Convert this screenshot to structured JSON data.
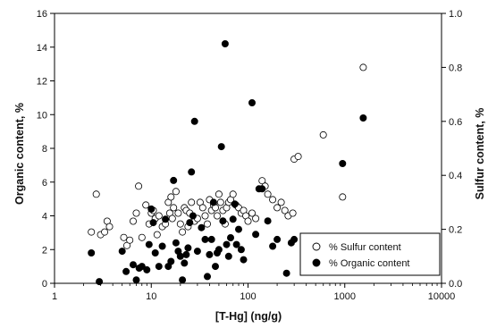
{
  "chart_data": {
    "type": "scatter",
    "xlabel": "[T-Hg] (ng/g)",
    "ylabel_left": "Organic content, %",
    "ylabel_right": "Sulfur content, %",
    "x_scale": "log",
    "xlim": [
      1,
      10000
    ],
    "ylim_left": [
      0,
      16
    ],
    "ylim_right": [
      0,
      1.0
    ],
    "x_ticks": [
      "1",
      "10",
      "100",
      "1000",
      "10000"
    ],
    "y_left_ticks": [
      "0",
      "2",
      "4",
      "6",
      "8",
      "10",
      "12",
      "14",
      "16"
    ],
    "y_right_ticks": [
      "0.0",
      "0.2",
      "0.4",
      "0.6",
      "0.8",
      "1.0"
    ],
    "grid": false,
    "legend_position": "bottom-right",
    "colors": {
      "organic_fill": "#000000",
      "sulfur_fill": "#ffffff",
      "marker_stroke": "#000000"
    },
    "series": [
      {
        "name": "% Sulfur content",
        "marker": "open-circle",
        "axis": "right",
        "points": [
          [
            2.4,
            0.19
          ],
          [
            2.7,
            0.33
          ],
          [
            3.0,
            0.18
          ],
          [
            3.3,
            0.19
          ],
          [
            3.5,
            0.23
          ],
          [
            3.7,
            0.21
          ],
          [
            5.2,
            0.17
          ],
          [
            5.6,
            0.14
          ],
          [
            6.0,
            0.16
          ],
          [
            6.5,
            0.23
          ],
          [
            7.0,
            0.26
          ],
          [
            7.4,
            0.36
          ],
          [
            8.0,
            0.17
          ],
          [
            8.8,
            0.29
          ],
          [
            9.5,
            0.22
          ],
          [
            10,
            0.26
          ],
          [
            10.5,
            0.27
          ],
          [
            11,
            0.24
          ],
          [
            11.5,
            0.18
          ],
          [
            12,
            0.25
          ],
          [
            13,
            0.21
          ],
          [
            14,
            0.22
          ],
          [
            15,
            0.3
          ],
          [
            15.5,
            0.26
          ],
          [
            16,
            0.32
          ],
          [
            16.5,
            0.24
          ],
          [
            17,
            0.28
          ],
          [
            18,
            0.34
          ],
          [
            19,
            0.26
          ],
          [
            20,
            0.22
          ],
          [
            21,
            0.19
          ],
          [
            22,
            0.28
          ],
          [
            23,
            0.27
          ],
          [
            24,
            0.21
          ],
          [
            25,
            0.26
          ],
          [
            26,
            0.3
          ],
          [
            28,
            0.23
          ],
          [
            30,
            0.24
          ],
          [
            32,
            0.3
          ],
          [
            34,
            0.28
          ],
          [
            36,
            0.25
          ],
          [
            38,
            0.22
          ],
          [
            40,
            0.31
          ],
          [
            42,
            0.27
          ],
          [
            44,
            0.29
          ],
          [
            46,
            0.28
          ],
          [
            48,
            0.25
          ],
          [
            50,
            0.33
          ],
          [
            52,
            0.3
          ],
          [
            55,
            0.27
          ],
          [
            58,
            0.22
          ],
          [
            60,
            0.28
          ],
          [
            63,
            0.3
          ],
          [
            66,
            0.31
          ],
          [
            70,
            0.33
          ],
          [
            75,
            0.29
          ],
          [
            80,
            0.28
          ],
          [
            85,
            0.26
          ],
          [
            90,
            0.27
          ],
          [
            95,
            0.25
          ],
          [
            100,
            0.23
          ],
          [
            110,
            0.26
          ],
          [
            120,
            0.24
          ],
          [
            140,
            0.38
          ],
          [
            150,
            0.36
          ],
          [
            160,
            0.33
          ],
          [
            180,
            0.31
          ],
          [
            200,
            0.28
          ],
          [
            220,
            0.3
          ],
          [
            240,
            0.27
          ],
          [
            260,
            0.25
          ],
          [
            290,
            0.26
          ],
          [
            300,
            0.46
          ],
          [
            330,
            0.47
          ],
          [
            600,
            0.55
          ],
          [
            950,
            0.32
          ],
          [
            1550,
            0.8
          ]
        ]
      },
      {
        "name": "% Organic content",
        "marker": "filled-circle",
        "axis": "left",
        "points": [
          [
            2.4,
            1.8
          ],
          [
            2.9,
            0.1
          ],
          [
            5.0,
            1.9
          ],
          [
            5.5,
            0.7
          ],
          [
            6.5,
            1.1
          ],
          [
            7.0,
            0.2
          ],
          [
            7.5,
            0.9
          ],
          [
            8.0,
            1.0
          ],
          [
            9.0,
            0.8
          ],
          [
            9.5,
            2.3
          ],
          [
            10,
            4.4
          ],
          [
            10.5,
            3.6
          ],
          [
            11,
            1.8
          ],
          [
            12,
            1.0
          ],
          [
            13,
            2.2
          ],
          [
            14,
            3.8
          ],
          [
            15,
            1.0
          ],
          [
            16,
            1.3
          ],
          [
            17,
            6.1
          ],
          [
            18,
            2.4
          ],
          [
            19,
            1.9
          ],
          [
            20,
            1.6
          ],
          [
            21,
            0.2
          ],
          [
            22,
            1.2
          ],
          [
            23,
            1.7
          ],
          [
            24,
            2.1
          ],
          [
            25,
            3.6
          ],
          [
            26,
            6.6
          ],
          [
            27,
            4.0
          ],
          [
            28,
            9.6
          ],
          [
            30,
            1.9
          ],
          [
            33,
            3.3
          ],
          [
            36,
            2.6
          ],
          [
            38,
            0.4
          ],
          [
            40,
            1.7
          ],
          [
            42,
            2.6
          ],
          [
            44,
            4.8
          ],
          [
            46,
            1.0
          ],
          [
            48,
            1.8
          ],
          [
            50,
            2.0
          ],
          [
            53,
            8.1
          ],
          [
            55,
            3.7
          ],
          [
            58,
            14.2
          ],
          [
            60,
            2.3
          ],
          [
            63,
            1.6
          ],
          [
            66,
            2.7
          ],
          [
            70,
            3.8
          ],
          [
            73,
            4.7
          ],
          [
            76,
            2.3
          ],
          [
            80,
            3.2
          ],
          [
            85,
            2.0
          ],
          [
            90,
            1.4
          ],
          [
            110,
            10.7
          ],
          [
            120,
            2.9
          ],
          [
            130,
            5.6
          ],
          [
            140,
            5.6
          ],
          [
            160,
            3.7
          ],
          [
            180,
            2.2
          ],
          [
            200,
            2.6
          ],
          [
            250,
            0.6
          ],
          [
            280,
            2.4
          ],
          [
            300,
            2.6
          ],
          [
            950,
            7.1
          ],
          [
            1550,
            9.8
          ]
        ]
      }
    ]
  }
}
